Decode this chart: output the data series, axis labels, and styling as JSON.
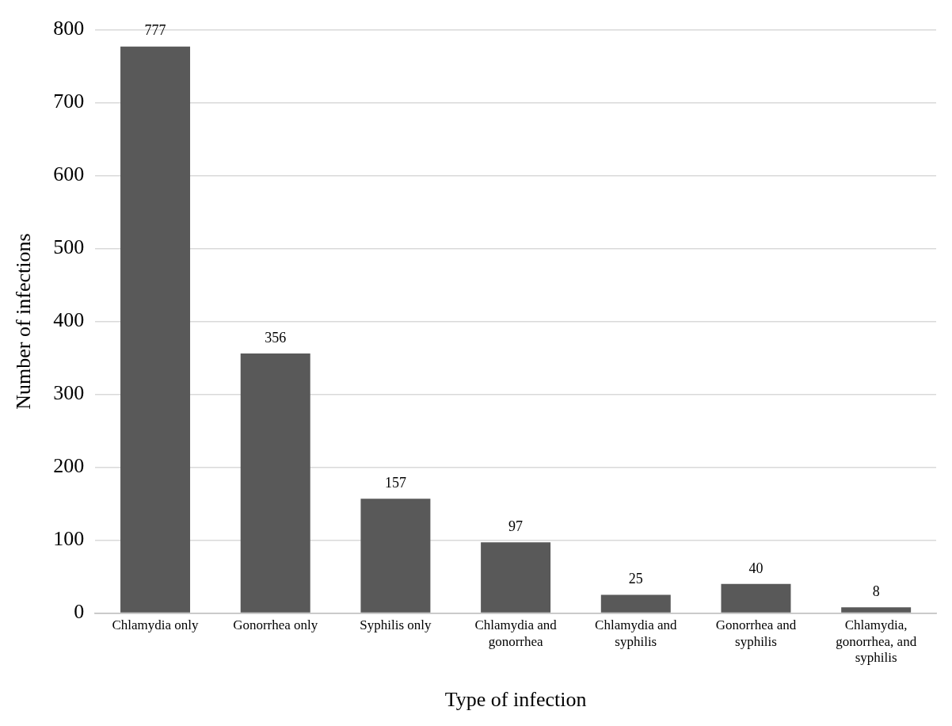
{
  "chart_data": {
    "type": "bar",
    "xlabel": "Type of infection",
    "ylabel": "Number of infections",
    "categories": [
      "Chlamydia only",
      "Gonorrhea only",
      "Syphilis only",
      "Chlamydia and gonorrhea",
      "Chlamydia and syphilis",
      "Gonorrhea and syphilis",
      "Chlamydia, gonorrhea, and syphilis"
    ],
    "values": [
      777,
      356,
      157,
      97,
      25,
      40,
      8
    ],
    "color": "#595959",
    "ylim": [
      0,
      800
    ],
    "yticks": [
      0,
      100,
      200,
      300,
      400,
      500,
      600,
      700,
      800
    ],
    "grid": "y",
    "data_labels": true,
    "legend": false
  }
}
